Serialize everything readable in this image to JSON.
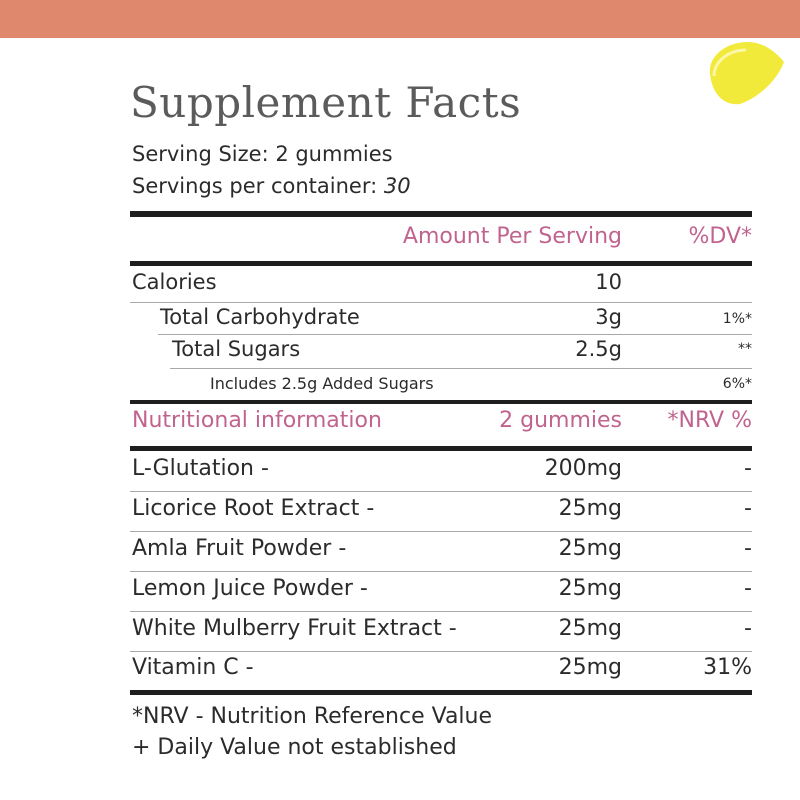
{
  "colors": {
    "top_band": "#e0886e",
    "accent_pink": "#c0648f",
    "lemon": "#f2ea3a"
  },
  "icons": {
    "lemon": "lemon-slice-icon"
  },
  "title": "Supplement Facts",
  "serving_size": "Serving Size: 2 gummies",
  "servings_label": "Servings per container:",
  "servings_value": "30",
  "header": {
    "amount_label": "Amount Per Serving",
    "dv_label": "%DV*"
  },
  "facts": [
    {
      "label": "Calories",
      "amount": "10",
      "dv": ""
    },
    {
      "label": "Total Carbohydrate",
      "amount": "3g",
      "dv": "1%*"
    },
    {
      "label": "Total Sugars",
      "amount": "2.5g",
      "dv": "**"
    },
    {
      "label": "Includes 2.5g Added Sugars",
      "amount": "",
      "dv": "6%*"
    }
  ],
  "nutrition_header": {
    "label": "Nutritional information",
    "amount": "2 gummies",
    "nrv": "*NRV %"
  },
  "ingredients": [
    {
      "label": "L-Glutation -",
      "amount": "200mg",
      "nrv": "-"
    },
    {
      "label": "Licorice Root Extract -",
      "amount": "25mg",
      "nrv": "-"
    },
    {
      "label": "Amla Fruit Powder -",
      "amount": "25mg",
      "nrv": "-"
    },
    {
      "label": "Lemon Juice Powder -",
      "amount": "25mg",
      "nrv": "-"
    },
    {
      "label": "White Mulberry Fruit Extract -",
      "amount": "25mg",
      "nrv": "-"
    },
    {
      "label": "Vitamin C -",
      "amount": "25mg",
      "nrv": "31%"
    }
  ],
  "footnotes": [
    "*NRV - Nutrition Reference Value",
    "+ Daily Value not established"
  ]
}
